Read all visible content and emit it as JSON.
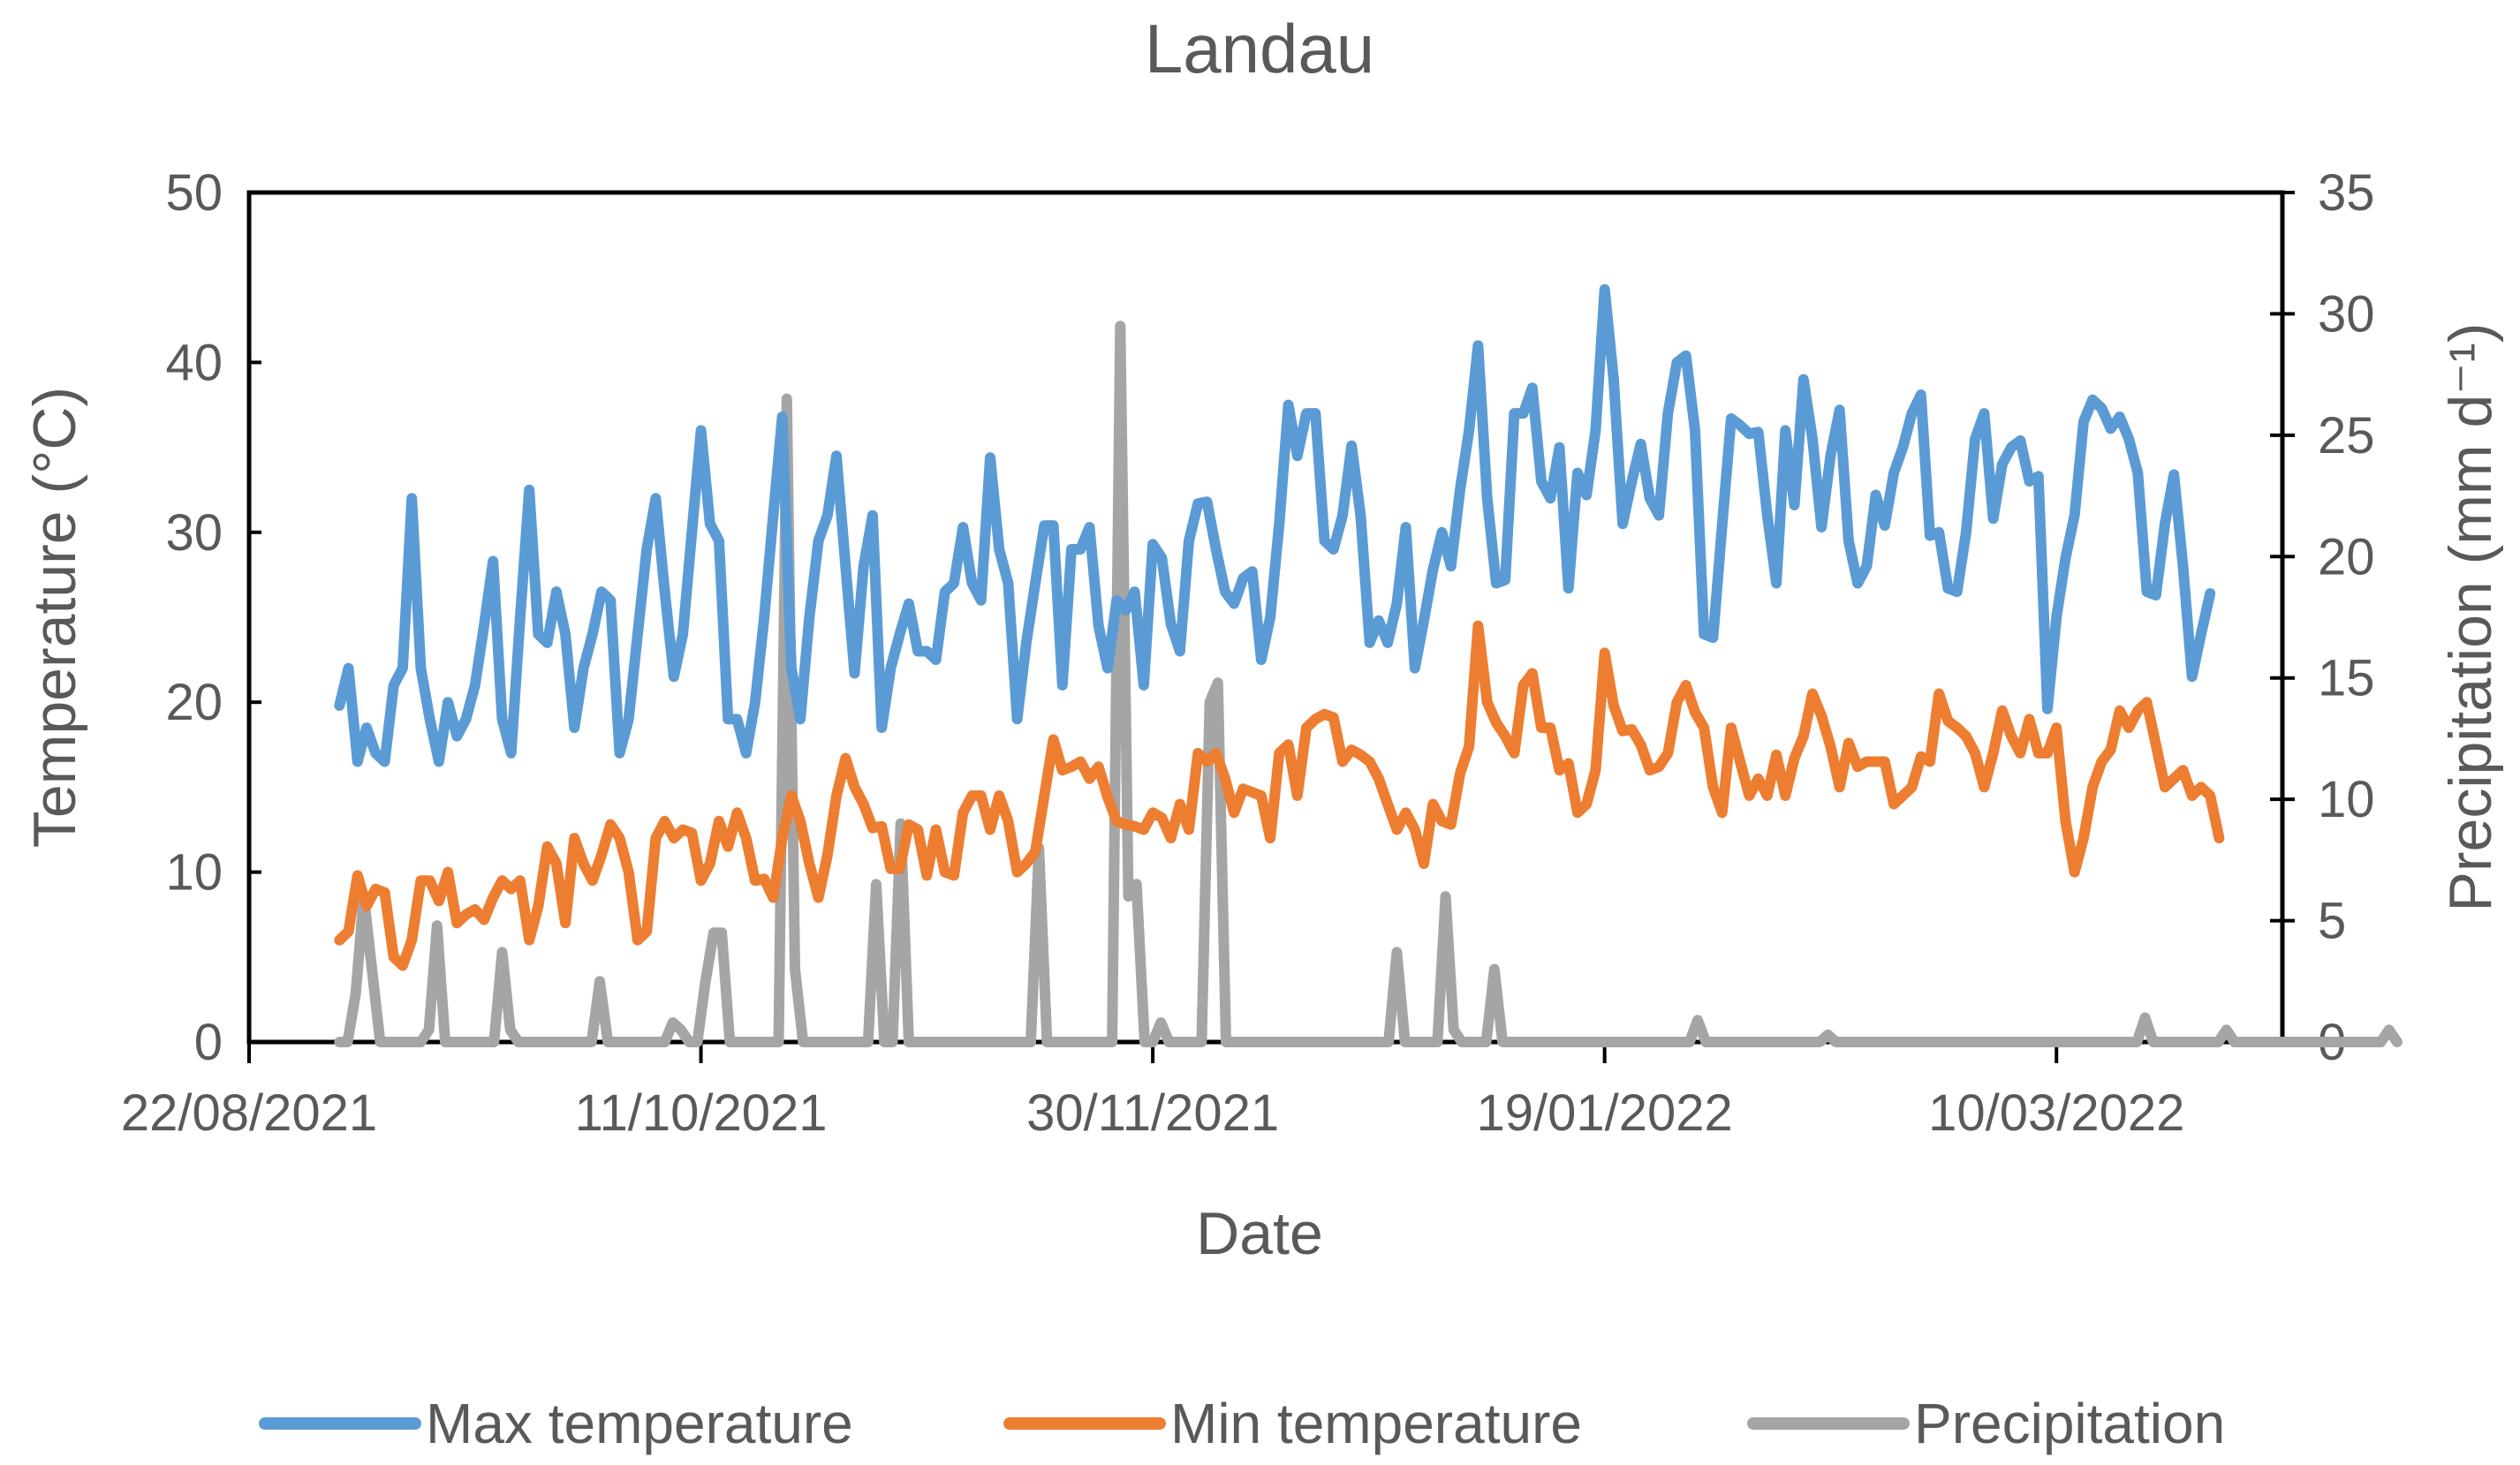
{
  "chart_data": {
    "type": "line",
    "title": "Landau",
    "xlabel": "Date",
    "ylabel_left": "Temperature (°C)",
    "ylabel_right": "Precipitation (mm d⁻¹)",
    "ylim_left": [
      0,
      50
    ],
    "ylim_right": [
      0,
      35
    ],
    "yticks_left": [
      "0",
      "10",
      "20",
      "30",
      "40",
      "50"
    ],
    "yticks_right": [
      "0",
      "5",
      "10",
      "15",
      "20",
      "25",
      "30",
      "35"
    ],
    "x_range_days": [
      0,
      225
    ],
    "x_ticks": [
      {
        "day": 0,
        "label": "22/08/2021"
      },
      {
        "day": 50,
        "label": "11/10/2021"
      },
      {
        "day": 100,
        "label": "30/11/2021"
      },
      {
        "day": 150,
        "label": "19/01/2022"
      },
      {
        "day": 200,
        "label": "10/03/2022"
      }
    ],
    "x_start_day": 10,
    "x_step_days": 1,
    "legend_position": "bottom",
    "series": [
      {
        "name": "Max temperature",
        "axis": "left",
        "color": "#5b9bd5",
        "values": [
          19.8,
          22,
          16.5,
          18.5,
          17,
          16.5,
          21,
          22,
          32,
          22,
          19,
          16.5,
          20,
          18,
          19,
          21,
          24.5,
          28.3,
          19,
          17,
          25,
          32.5,
          24,
          23.5,
          26.5,
          24,
          18.5,
          22,
          24,
          26.5,
          26,
          17,
          19,
          24,
          29,
          32,
          26.5,
          21.5,
          24,
          30,
          36,
          30.5,
          29.5,
          19,
          19,
          17,
          20,
          25,
          31,
          36.8,
          22,
          19,
          25,
          29.5,
          31,
          34.5,
          28,
          21.7,
          28,
          31,
          18.5,
          22,
          24,
          25.8,
          23,
          23,
          22.5,
          26.5,
          27,
          30.3,
          27,
          26,
          34.4,
          29,
          27,
          19,
          23.5,
          27,
          30.4,
          30.4,
          21,
          29,
          29,
          30.3,
          24.5,
          22,
          26,
          25.4,
          26.5,
          21,
          29.3,
          28.5,
          24.6,
          23,
          29.5,
          31.7,
          31.8,
          29,
          26.5,
          25.8,
          27.3,
          27.7,
          22.5,
          25,
          30.5,
          37.5,
          34.5,
          37,
          37,
          29.5,
          29,
          31,
          35.1,
          31,
          23.5,
          24.8,
          23.5,
          25.8,
          30.3,
          22,
          24.8,
          27.8,
          30,
          28,
          32.5,
          36,
          41,
          32,
          27,
          27.2,
          37,
          37,
          38.5,
          33,
          32,
          35,
          26.7,
          33.5,
          32.2,
          36,
          44.3,
          39,
          30.5,
          33,
          35.2,
          32,
          31,
          37,
          40,
          40.4,
          36,
          24,
          23.8,
          30.4,
          36.7,
          36.3,
          35.8,
          35.9,
          31,
          27,
          36,
          31.6,
          39,
          35.5,
          30.3,
          34.5,
          37.2,
          29.5,
          27,
          28,
          32.2,
          30.4,
          33.5,
          35,
          37,
          38.1,
          29.8,
          30,
          26.7,
          26.5,
          30,
          35.5,
          37,
          30.8,
          34,
          35,
          35.4,
          33,
          33.3,
          19.6,
          25,
          28.5,
          31,
          36.5,
          37.8,
          37.3,
          36.1,
          36.8,
          35.5,
          33.5,
          26.5,
          26.3,
          30.5,
          33.4,
          28,
          21.5,
          24,
          26.4
        ],
        "values_step": 1
      },
      {
        "name": "Min temperature",
        "axis": "left",
        "color": "#ed7d31",
        "values": [
          6,
          6.5,
          9.8,
          8,
          9,
          8.8,
          5,
          4.5,
          6,
          9.5,
          9.5,
          8.3,
          10,
          7,
          7.5,
          7.8,
          7.2,
          8.5,
          9.5,
          9,
          9.5,
          6,
          8,
          11.5,
          10.5,
          7,
          12,
          10.5,
          9.5,
          11,
          12.8,
          12,
          10,
          6,
          6.5,
          12,
          13,
          12,
          12.5,
          12.3,
          9.5,
          10.5,
          13,
          11.5,
          13.5,
          12,
          9.5,
          9.6,
          8.5,
          12,
          14.5,
          13,
          10.5,
          8.5,
          11,
          14.5,
          16.7,
          15,
          14,
          12.6,
          12.7,
          10.2,
          10.2,
          12.8,
          12.5,
          9.8,
          12.5,
          10,
          9.8,
          13.5,
          14.5,
          14.5,
          12.5,
          14.5,
          13,
          10,
          10.5,
          11.2,
          14.5,
          17.8,
          16,
          16.2,
          16.5,
          15.5,
          16.2,
          14.4,
          13,
          12.8,
          12.7,
          12.5,
          13.5,
          13.2,
          12,
          14,
          12.5,
          17,
          16.5,
          17,
          15.5,
          13.5,
          14.9,
          14.7,
          14.5,
          12,
          17,
          17.5,
          14.5,
          18.5,
          19,
          19.3,
          19.1,
          16.5,
          17.2,
          16.9,
          16.5,
          15.5,
          14,
          12.5,
          13.5,
          12.5,
          10.5,
          14,
          13,
          12.8,
          15.8,
          17.4,
          24.5,
          20,
          18.8,
          18,
          17,
          21,
          21.7,
          18.5,
          18.5,
          16,
          16.4,
          13.5,
          14,
          16,
          22.9,
          19.8,
          18.3,
          18.4,
          17.5,
          16,
          16.2,
          17,
          20,
          21,
          19.4,
          18.5,
          15,
          13.5,
          18.5,
          16.5,
          14.5,
          15.5,
          14.5,
          16.9,
          14.5,
          16.7,
          18,
          20.5,
          19.2,
          17.4,
          15,
          17.6,
          16.2,
          16.5,
          16.5,
          16.5,
          14,
          14.5,
          15,
          16.8,
          16.5,
          20.5,
          18.9,
          18.5,
          18,
          17,
          15,
          17,
          19.5,
          18,
          17,
          19,
          17,
          17,
          18.5,
          13,
          10,
          12,
          15,
          16.5,
          17.2,
          19.5,
          18.5,
          19.5,
          20,
          17.5,
          15,
          15.5,
          16,
          14.5,
          15,
          14.5,
          12
        ],
        "values_step": 1
      },
      {
        "name": "Precipitation",
        "axis": "right",
        "color": "#a5a5a5",
        "values": [
          0,
          0,
          2,
          6,
          3,
          0,
          0,
          0,
          0,
          0,
          0,
          0.5,
          4.8,
          0,
          0,
          0,
          0,
          0,
          0,
          0,
          3.7,
          0.5,
          0,
          0,
          0,
          0,
          0,
          0,
          0,
          0,
          0,
          0,
          2.5,
          0,
          0,
          0,
          0,
          0,
          0,
          0,
          0,
          0.8,
          0.5,
          0,
          0,
          2.5,
          4.5,
          4.5,
          0,
          0,
          0,
          0,
          0,
          0,
          0,
          26.5,
          3,
          0,
          0,
          0,
          0,
          0,
          0,
          0,
          0,
          0,
          6.5,
          0,
          0,
          9,
          0,
          0,
          0,
          0,
          0,
          0,
          0,
          0,
          0,
          0,
          0,
          0,
          0,
          0,
          0,
          0,
          8,
          0,
          0,
          0,
          0,
          0,
          0,
          0,
          0,
          0,
          29.5,
          6,
          6.5,
          0,
          0,
          0.8,
          0,
          0,
          0,
          0,
          0,
          14,
          14.8,
          0,
          0,
          0,
          0,
          0,
          0,
          0,
          0,
          0,
          0,
          0,
          0,
          0,
          0,
          0,
          0,
          0,
          0,
          0,
          0,
          0,
          3.7,
          0,
          0,
          0,
          0,
          0,
          6,
          0.5,
          0,
          0,
          0,
          0,
          3,
          0,
          0,
          0,
          0,
          0,
          0,
          0,
          0,
          0,
          0,
          0,
          0,
          0,
          0,
          0,
          0,
          0,
          0,
          0,
          0,
          0,
          0,
          0,
          0,
          0.9,
          0,
          0,
          0,
          0,
          0,
          0,
          0,
          0,
          0,
          0,
          0,
          0,
          0,
          0,
          0,
          0.3,
          0,
          0,
          0,
          0,
          0,
          0,
          0,
          0,
          0,
          0,
          0,
          0,
          0,
          0,
          0,
          0,
          0,
          0,
          0,
          0,
          0,
          0,
          0,
          0,
          0,
          0,
          0,
          0,
          0,
          0,
          0,
          0,
          0,
          0,
          0,
          0,
          0,
          0,
          1,
          0,
          0,
          0,
          0,
          0,
          0,
          0,
          0,
          0,
          0.5,
          0,
          0,
          0,
          0,
          0,
          0,
          0,
          0,
          0,
          0,
          0,
          0,
          0,
          0,
          0,
          0,
          0,
          0,
          0,
          0.5,
          0
        ],
        "values_step": 0.9
      }
    ]
  }
}
